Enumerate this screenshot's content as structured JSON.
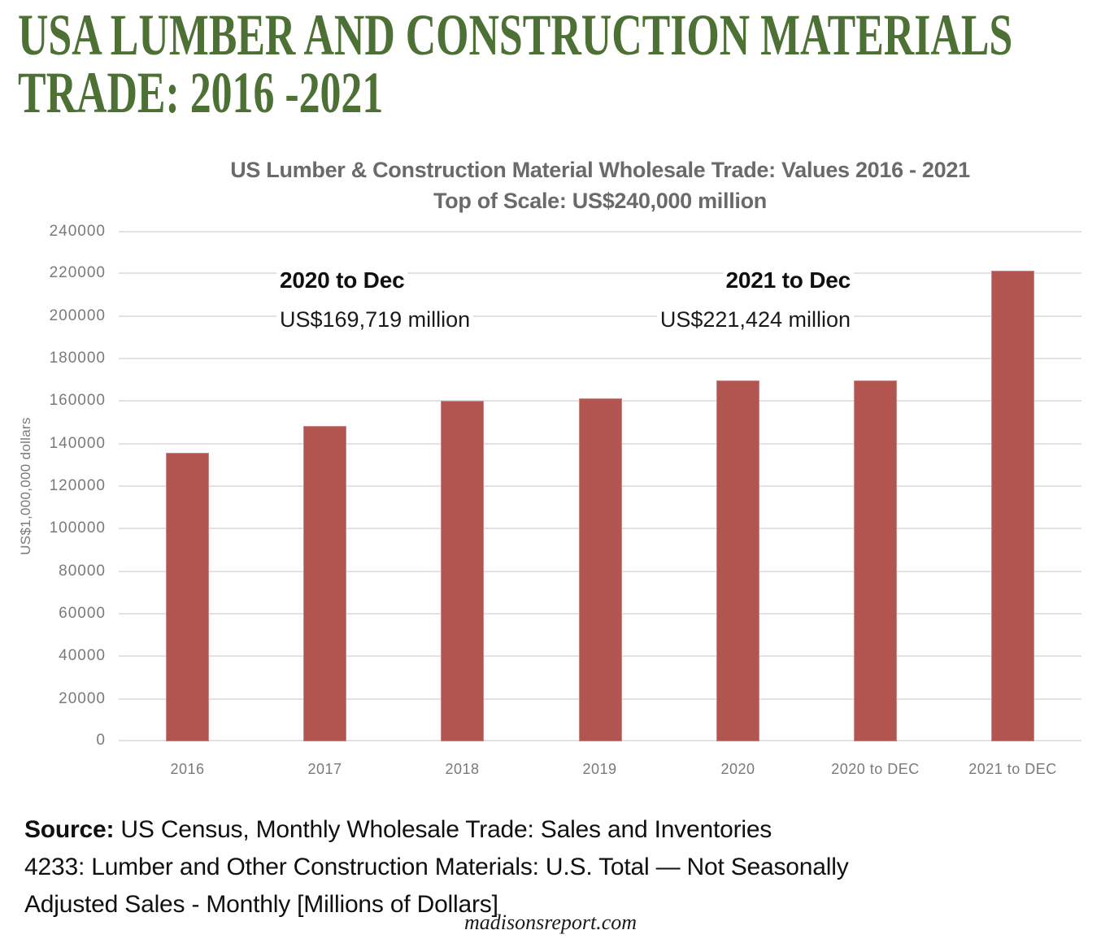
{
  "header": {
    "title_line1": "USA LUMBER AND CONSTRUCTION MATERIALS",
    "title_line2": "TRADE: 2016 -2021"
  },
  "chart": {
    "title_line1": "US Lumber & Construction Material Wholesale Trade: Values 2016 - 2021",
    "title_line2": "Top of Scale: US$240,000 million",
    "y_axis_title": "US$1,000,000 dollars",
    "annotations": [
      {
        "title": "2020 to Dec",
        "value": "US$169,719 million"
      },
      {
        "title": "2021 to Dec",
        "value": "US$221,424 million"
      }
    ]
  },
  "chart_data": {
    "type": "bar",
    "title": "US Lumber & Construction Material Wholesale Trade: Values 2016 - 2021",
    "subtitle": "Top of Scale: US$240,000 million",
    "categories": [
      "2016",
      "2017",
      "2018",
      "2019",
      "2020",
      "2020 to DEC",
      "2021 to DEC"
    ],
    "values": [
      135500,
      148300,
      160300,
      161200,
      169719,
      169719,
      221424
    ],
    "xlabel": "",
    "ylabel": "US$1,000,000 dollars",
    "ylim": [
      0,
      240000
    ],
    "ytick_step": 20000,
    "grid": true,
    "legend": "none",
    "bar_color": "#b25551",
    "grid_color": "#e2e2e2",
    "axis_text_color": "#7a7a7a",
    "annotations": [
      {
        "label": "2020 to Dec",
        "value_text": "US$169,719 million",
        "value": 169719
      },
      {
        "label": "2021 to Dec",
        "value_text": "US$221,424 million",
        "value": 221424
      }
    ]
  },
  "colors": {
    "heading_green": "#4d7134",
    "bar_red": "#b25551",
    "chart_title_gray": "#6a6a6a"
  },
  "source": {
    "label": "Source:",
    "line1_rest": " US Census, Monthly Wholesale Trade: Sales and Inventories",
    "line2": "4233: Lumber and Other Construction Materials: U.S. Total — Not Seasonally",
    "line3": "Adjusted Sales - Monthly [Millions of Dollars]"
  },
  "footer": {
    "site": "madisonsreport.com"
  }
}
